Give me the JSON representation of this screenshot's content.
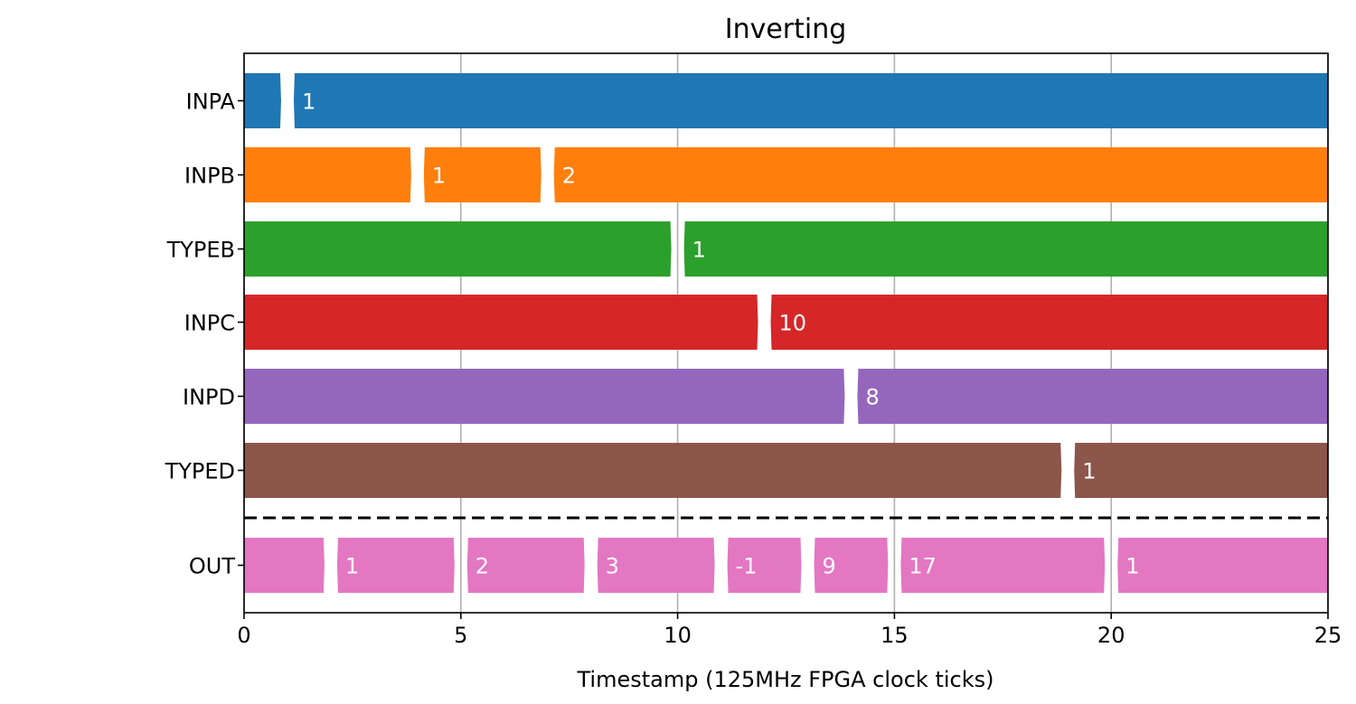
{
  "chart_data": {
    "type": "timing",
    "title": "Inverting",
    "xlabel": "Timestamp (125MHz FPGA clock ticks)",
    "ylabel": "",
    "xlim": [
      0,
      25
    ],
    "xticks": [
      0,
      5,
      10,
      15,
      20,
      25
    ],
    "grid": "vertical",
    "separator": "dashed line between TYPED and OUT",
    "signals": [
      {
        "name": "INPA",
        "color": "#1f77b4",
        "transitions": [
          {
            "t": 1,
            "value": "1"
          }
        ]
      },
      {
        "name": "INPB",
        "color": "#ff7f0e",
        "transitions": [
          {
            "t": 4,
            "value": "1"
          },
          {
            "t": 7,
            "value": "2"
          }
        ]
      },
      {
        "name": "TYPEB",
        "color": "#2ca02c",
        "transitions": [
          {
            "t": 10,
            "value": "1"
          }
        ]
      },
      {
        "name": "INPC",
        "color": "#d62728",
        "transitions": [
          {
            "t": 12,
            "value": "10"
          }
        ]
      },
      {
        "name": "INPD",
        "color": "#9467bd",
        "transitions": [
          {
            "t": 14,
            "value": "8"
          }
        ]
      },
      {
        "name": "TYPED",
        "color": "#8c564b",
        "transitions": [
          {
            "t": 19,
            "value": "1"
          }
        ]
      },
      {
        "name": "OUT",
        "color": "#e377c2",
        "transitions": [
          {
            "t": 2,
            "value": "1"
          },
          {
            "t": 5,
            "value": "2"
          },
          {
            "t": 8,
            "value": "3"
          },
          {
            "t": 11,
            "value": "-1"
          },
          {
            "t": 13,
            "value": "9"
          },
          {
            "t": 15,
            "value": "17"
          },
          {
            "t": 20,
            "value": "1"
          }
        ]
      }
    ]
  }
}
